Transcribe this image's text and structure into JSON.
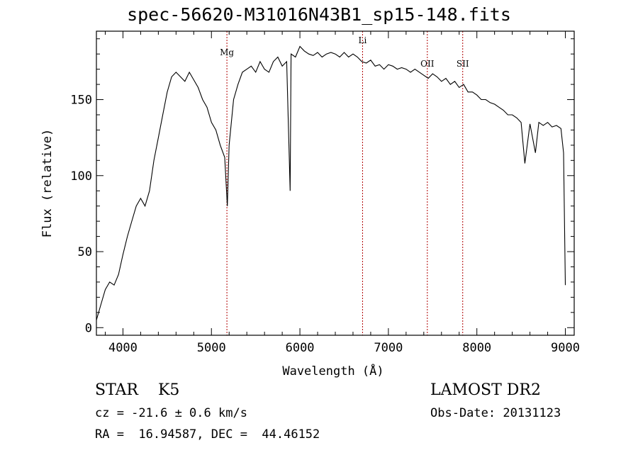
{
  "title": "spec-56620-M31016N43B1_sp15-148.fits",
  "footer": {
    "object_class": "STAR    K5",
    "survey": "LAMOST DR2",
    "cz": "cz = -21.6 ± 0.6 km/s",
    "obs_date": "Obs-Date: 20131123",
    "ra_dec": "RA =  16.94587, DEC =  44.46152"
  },
  "chart_data": {
    "type": "line",
    "title": "spec-56620-M31016N43B1_sp15-148.fits",
    "xlabel": "Wavelength (Å)",
    "ylabel": "Flux (relative)",
    "xlim": [
      3700,
      9100
    ],
    "ylim": [
      -5,
      195
    ],
    "xticks": [
      4000,
      5000,
      6000,
      7000,
      8000,
      9000
    ],
    "yticks": [
      0,
      50,
      100,
      150
    ],
    "grid": false,
    "series": [
      {
        "x": [
          3700,
          3750,
          3800,
          3850,
          3900,
          3950,
          4000,
          4050,
          4100,
          4150,
          4200,
          4250,
          4300,
          4350,
          4400,
          4450,
          4500,
          4550,
          4600,
          4650,
          4700,
          4750,
          4800,
          4850,
          4900,
          4950,
          5000,
          5050,
          5100,
          5150,
          5180,
          5200,
          5250,
          5300,
          5350,
          5400,
          5450,
          5500,
          5550,
          5600,
          5650,
          5700,
          5750,
          5800,
          5850,
          5890,
          5900,
          5950,
          6000,
          6050,
          6100,
          6150,
          6200,
          6250,
          6300,
          6350,
          6400,
          6450,
          6500,
          6550,
          6600,
          6650,
          6700,
          6750,
          6800,
          6850,
          6900,
          6950,
          7000,
          7050,
          7100,
          7150,
          7200,
          7250,
          7300,
          7350,
          7400,
          7450,
          7500,
          7550,
          7600,
          7650,
          7700,
          7750,
          7800,
          7850,
          7900,
          7950,
          8000,
          8050,
          8100,
          8150,
          8200,
          8250,
          8300,
          8350,
          8400,
          8450,
          8500,
          8542,
          8600,
          8662,
          8700,
          8750,
          8800,
          8850,
          8900,
          8950,
          8980,
          9000
        ],
        "y": [
          5,
          15,
          25,
          30,
          28,
          35,
          48,
          60,
          70,
          80,
          85,
          80,
          90,
          110,
          125,
          140,
          155,
          165,
          168,
          165,
          162,
          168,
          163,
          158,
          150,
          145,
          135,
          130,
          120,
          112,
          80,
          120,
          150,
          160,
          168,
          170,
          172,
          168,
          175,
          170,
          168,
          175,
          178,
          172,
          175,
          90,
          180,
          178,
          185,
          182,
          180,
          179,
          181,
          178,
          180,
          181,
          180,
          178,
          181,
          178,
          180,
          178,
          175,
          174,
          176,
          172,
          173,
          170,
          173,
          172,
          170,
          171,
          170,
          168,
          170,
          168,
          166,
          164,
          167,
          165,
          162,
          164,
          160,
          162,
          158,
          160,
          155,
          155,
          153,
          150,
          150,
          148,
          147,
          145,
          143,
          140,
          140,
          138,
          135,
          108,
          134,
          115,
          135,
          133,
          135,
          132,
          133,
          131,
          115,
          28
        ]
      }
    ],
    "line_markers": [
      {
        "label": "Mg",
        "x": 5175
      },
      {
        "label": "Li",
        "x": 6708
      },
      {
        "label": "OII",
        "x": 7440
      },
      {
        "label": "SII",
        "x": 7840
      }
    ]
  }
}
